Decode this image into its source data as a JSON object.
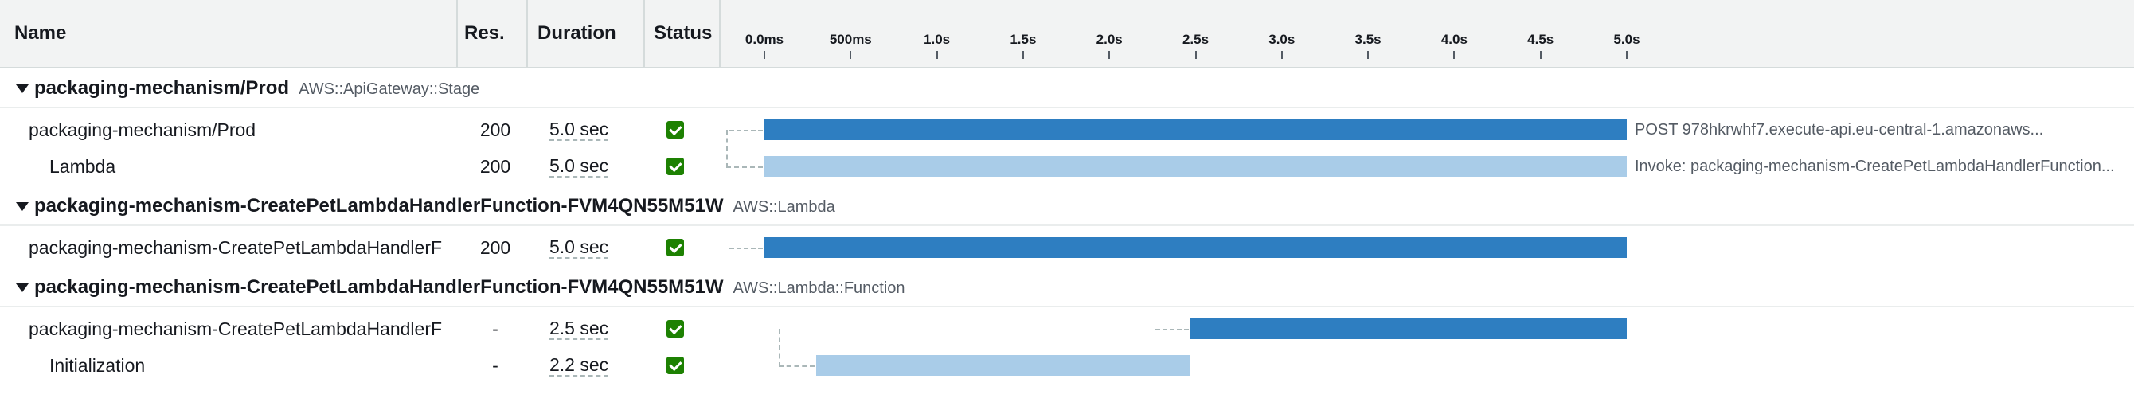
{
  "columns": {
    "name": "Name",
    "res": "Res.",
    "duration": "Duration",
    "status": "Status"
  },
  "timeline": {
    "ticks": [
      "0.0ms",
      "500ms",
      "1.0s",
      "1.5s",
      "2.0s",
      "2.5s",
      "3.0s",
      "3.5s",
      "4.0s",
      "4.5s",
      "5.0s"
    ],
    "max_seconds": 5.0
  },
  "groups": [
    {
      "title": "packaging-mechanism/Prod",
      "type": "AWS::ApiGateway::Stage",
      "segments": [
        {
          "name": "packaging-mechanism/Prod",
          "res": "200",
          "duration": "5.0 sec",
          "status": "ok",
          "start": 0.0,
          "end": 5.0,
          "tone": "dark",
          "label": "POST 978hkrwhf7.execute-api.eu-central-1.amazonaws..."
        },
        {
          "name": "Lambda",
          "res": "200",
          "duration": "5.0 sec",
          "status": "ok",
          "start": 0.0,
          "end": 5.0,
          "tone": "light",
          "label": "Invoke: packaging-mechanism-CreatePetLambdaHandlerFunction..."
        }
      ]
    },
    {
      "title": "packaging-mechanism-CreatePetLambdaHandlerFunction-FVM4QN55M51W",
      "type": "AWS::Lambda",
      "segments": [
        {
          "name": "packaging-mechanism-CreatePetLambdaHandlerF",
          "res": "200",
          "duration": "5.0 sec",
          "status": "ok",
          "start": 0.0,
          "end": 5.0,
          "tone": "dark",
          "label": ""
        }
      ]
    },
    {
      "title": "packaging-mechanism-CreatePetLambdaHandlerFunction-FVM4QN55M51W",
      "type": "AWS::Lambda::Function",
      "segments": [
        {
          "name": "packaging-mechanism-CreatePetLambdaHandlerF",
          "res": "-",
          "duration": "2.5 sec",
          "status": "ok",
          "start": 2.47,
          "end": 5.0,
          "tone": "dark",
          "label": ""
        },
        {
          "name": "Initialization",
          "res": "-",
          "duration": "2.2 sec",
          "status": "ok",
          "start": 0.3,
          "end": 2.47,
          "tone": "light",
          "label": ""
        }
      ]
    }
  ],
  "colors": {
    "bar_dark": "#2e7ec1",
    "bar_light": "#a9cce8",
    "status_ok": "#1d8102"
  },
  "icons": {
    "group_toggle": "caret-down-icon",
    "status_ok": "check-box-icon"
  }
}
